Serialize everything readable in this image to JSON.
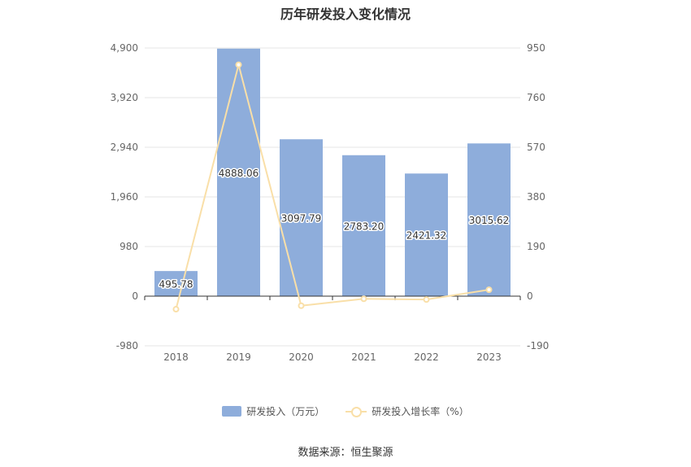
{
  "title": "历年研发投入变化情况",
  "source": "数据来源：恒生聚源",
  "colors": {
    "bar": "#8eaddb",
    "line": "#f9dfa8",
    "grid": "#e6e6e6",
    "axis_text": "#666666"
  },
  "legend": {
    "bar_label": "研发投入（万元）",
    "line_label": "研发投入增长率（%）"
  },
  "chart_data": {
    "type": "bar",
    "title": "历年研发投入变化情况",
    "categories": [
      "2018",
      "2019",
      "2020",
      "2021",
      "2022",
      "2023"
    ],
    "series": [
      {
        "name": "研发投入（万元）",
        "type": "bar",
        "axis": "left",
        "values": [
          495.78,
          4888.06,
          3097.79,
          2783.2,
          2421.32,
          3015.62
        ],
        "labels": [
          "495.78",
          "4888.06",
          "3097.79",
          "2783.20",
          "2421.32",
          "3015.62"
        ]
      },
      {
        "name": "研发投入增长率（%）",
        "type": "line",
        "axis": "right",
        "values": [
          -50,
          885.9,
          -36.6,
          -10.2,
          -13.0,
          24.5
        ]
      }
    ],
    "y_left": {
      "ticks": [
        -980,
        0,
        980,
        1960,
        2940,
        3920,
        4900
      ],
      "tick_labels": [
        "-980",
        "0",
        "980",
        "1,960",
        "2,940",
        "3,920",
        "4,900"
      ],
      "ylim": [
        -980,
        4900
      ]
    },
    "y_right": {
      "ticks": [
        -190,
        0,
        190,
        380,
        570,
        760,
        950
      ],
      "tick_labels": [
        "-190",
        "0",
        "190",
        "380",
        "570",
        "760",
        "950"
      ],
      "ylim": [
        -190,
        950
      ]
    },
    "grid": true,
    "legend_position": "bottom"
  }
}
